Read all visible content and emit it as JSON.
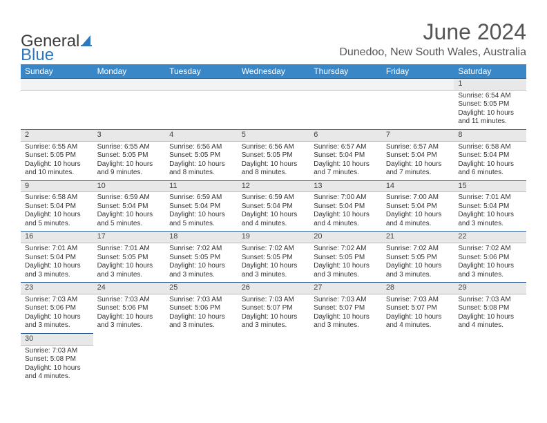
{
  "brand": {
    "part1": "General",
    "part2": "Blue"
  },
  "title": "June 2024",
  "location": "Dunedoo, New South Wales, Australia",
  "colors": {
    "header_bg": "#3a87c8",
    "header_text": "#ffffff",
    "daynum_bg": "#e8e8e8",
    "rule": "#2f5f98",
    "brand_blue": "#2f78bd",
    "text": "#333333"
  },
  "weekdays": [
    "Sunday",
    "Monday",
    "Tuesday",
    "Wednesday",
    "Thursday",
    "Friday",
    "Saturday"
  ],
  "weeks": [
    [
      null,
      null,
      null,
      null,
      null,
      null,
      {
        "n": "1",
        "sr": "Sunrise: 6:54 AM",
        "ss": "Sunset: 5:05 PM",
        "d1": "Daylight: 10 hours",
        "d2": "and 11 minutes."
      }
    ],
    [
      {
        "n": "2",
        "sr": "Sunrise: 6:55 AM",
        "ss": "Sunset: 5:05 PM",
        "d1": "Daylight: 10 hours",
        "d2": "and 10 minutes."
      },
      {
        "n": "3",
        "sr": "Sunrise: 6:55 AM",
        "ss": "Sunset: 5:05 PM",
        "d1": "Daylight: 10 hours",
        "d2": "and 9 minutes."
      },
      {
        "n": "4",
        "sr": "Sunrise: 6:56 AM",
        "ss": "Sunset: 5:05 PM",
        "d1": "Daylight: 10 hours",
        "d2": "and 8 minutes."
      },
      {
        "n": "5",
        "sr": "Sunrise: 6:56 AM",
        "ss": "Sunset: 5:05 PM",
        "d1": "Daylight: 10 hours",
        "d2": "and 8 minutes."
      },
      {
        "n": "6",
        "sr": "Sunrise: 6:57 AM",
        "ss": "Sunset: 5:04 PM",
        "d1": "Daylight: 10 hours",
        "d2": "and 7 minutes."
      },
      {
        "n": "7",
        "sr": "Sunrise: 6:57 AM",
        "ss": "Sunset: 5:04 PM",
        "d1": "Daylight: 10 hours",
        "d2": "and 7 minutes."
      },
      {
        "n": "8",
        "sr": "Sunrise: 6:58 AM",
        "ss": "Sunset: 5:04 PM",
        "d1": "Daylight: 10 hours",
        "d2": "and 6 minutes."
      }
    ],
    [
      {
        "n": "9",
        "sr": "Sunrise: 6:58 AM",
        "ss": "Sunset: 5:04 PM",
        "d1": "Daylight: 10 hours",
        "d2": "and 5 minutes."
      },
      {
        "n": "10",
        "sr": "Sunrise: 6:59 AM",
        "ss": "Sunset: 5:04 PM",
        "d1": "Daylight: 10 hours",
        "d2": "and 5 minutes."
      },
      {
        "n": "11",
        "sr": "Sunrise: 6:59 AM",
        "ss": "Sunset: 5:04 PM",
        "d1": "Daylight: 10 hours",
        "d2": "and 5 minutes."
      },
      {
        "n": "12",
        "sr": "Sunrise: 6:59 AM",
        "ss": "Sunset: 5:04 PM",
        "d1": "Daylight: 10 hours",
        "d2": "and 4 minutes."
      },
      {
        "n": "13",
        "sr": "Sunrise: 7:00 AM",
        "ss": "Sunset: 5:04 PM",
        "d1": "Daylight: 10 hours",
        "d2": "and 4 minutes."
      },
      {
        "n": "14",
        "sr": "Sunrise: 7:00 AM",
        "ss": "Sunset: 5:04 PM",
        "d1": "Daylight: 10 hours",
        "d2": "and 4 minutes."
      },
      {
        "n": "15",
        "sr": "Sunrise: 7:01 AM",
        "ss": "Sunset: 5:04 PM",
        "d1": "Daylight: 10 hours",
        "d2": "and 3 minutes."
      }
    ],
    [
      {
        "n": "16",
        "sr": "Sunrise: 7:01 AM",
        "ss": "Sunset: 5:04 PM",
        "d1": "Daylight: 10 hours",
        "d2": "and 3 minutes."
      },
      {
        "n": "17",
        "sr": "Sunrise: 7:01 AM",
        "ss": "Sunset: 5:05 PM",
        "d1": "Daylight: 10 hours",
        "d2": "and 3 minutes."
      },
      {
        "n": "18",
        "sr": "Sunrise: 7:02 AM",
        "ss": "Sunset: 5:05 PM",
        "d1": "Daylight: 10 hours",
        "d2": "and 3 minutes."
      },
      {
        "n": "19",
        "sr": "Sunrise: 7:02 AM",
        "ss": "Sunset: 5:05 PM",
        "d1": "Daylight: 10 hours",
        "d2": "and 3 minutes."
      },
      {
        "n": "20",
        "sr": "Sunrise: 7:02 AM",
        "ss": "Sunset: 5:05 PM",
        "d1": "Daylight: 10 hours",
        "d2": "and 3 minutes."
      },
      {
        "n": "21",
        "sr": "Sunrise: 7:02 AM",
        "ss": "Sunset: 5:05 PM",
        "d1": "Daylight: 10 hours",
        "d2": "and 3 minutes."
      },
      {
        "n": "22",
        "sr": "Sunrise: 7:02 AM",
        "ss": "Sunset: 5:06 PM",
        "d1": "Daylight: 10 hours",
        "d2": "and 3 minutes."
      }
    ],
    [
      {
        "n": "23",
        "sr": "Sunrise: 7:03 AM",
        "ss": "Sunset: 5:06 PM",
        "d1": "Daylight: 10 hours",
        "d2": "and 3 minutes."
      },
      {
        "n": "24",
        "sr": "Sunrise: 7:03 AM",
        "ss": "Sunset: 5:06 PM",
        "d1": "Daylight: 10 hours",
        "d2": "and 3 minutes."
      },
      {
        "n": "25",
        "sr": "Sunrise: 7:03 AM",
        "ss": "Sunset: 5:06 PM",
        "d1": "Daylight: 10 hours",
        "d2": "and 3 minutes."
      },
      {
        "n": "26",
        "sr": "Sunrise: 7:03 AM",
        "ss": "Sunset: 5:07 PM",
        "d1": "Daylight: 10 hours",
        "d2": "and 3 minutes."
      },
      {
        "n": "27",
        "sr": "Sunrise: 7:03 AM",
        "ss": "Sunset: 5:07 PM",
        "d1": "Daylight: 10 hours",
        "d2": "and 3 minutes."
      },
      {
        "n": "28",
        "sr": "Sunrise: 7:03 AM",
        "ss": "Sunset: 5:07 PM",
        "d1": "Daylight: 10 hours",
        "d2": "and 4 minutes."
      },
      {
        "n": "29",
        "sr": "Sunrise: 7:03 AM",
        "ss": "Sunset: 5:08 PM",
        "d1": "Daylight: 10 hours",
        "d2": "and 4 minutes."
      }
    ],
    [
      {
        "n": "30",
        "sr": "Sunrise: 7:03 AM",
        "ss": "Sunset: 5:08 PM",
        "d1": "Daylight: 10 hours",
        "d2": "and 4 minutes."
      },
      null,
      null,
      null,
      null,
      null,
      null
    ]
  ]
}
